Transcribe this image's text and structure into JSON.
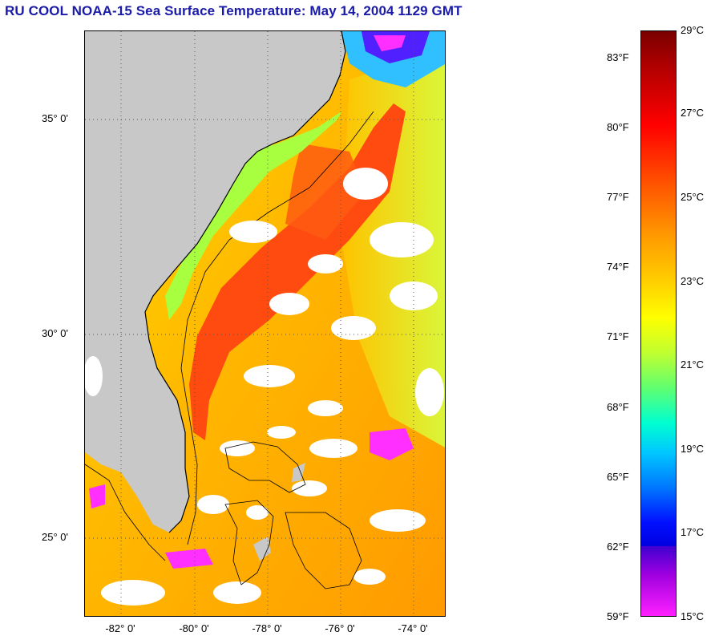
{
  "title": "RU COOL  NOAA-15  Sea Surface Temperature:  May 14, 2004 1129 GMT",
  "lat_labels": [
    "35° 0'",
    "30° 0'",
    "25° 0'"
  ],
  "lon_labels": [
    "-82° 0'",
    "-80° 0'",
    "-78° 0'",
    "-76° 0'",
    "-74° 0'"
  ],
  "colorbar": {
    "fahrenheit": [
      "83°F",
      "80°F",
      "77°F",
      "74°F",
      "71°F",
      "68°F",
      "65°F",
      "62°F",
      "59°F"
    ],
    "celsius": [
      "29°C",
      "27°C",
      "25°C",
      "23°C",
      "21°C",
      "19°C",
      "17°C",
      "15°C"
    ]
  },
  "colors": {
    "land": "#c8c8c8",
    "title": "#1a1aa8",
    "gulf_stream": "#ff4a10",
    "shelf_water": "#ffd800"
  }
}
